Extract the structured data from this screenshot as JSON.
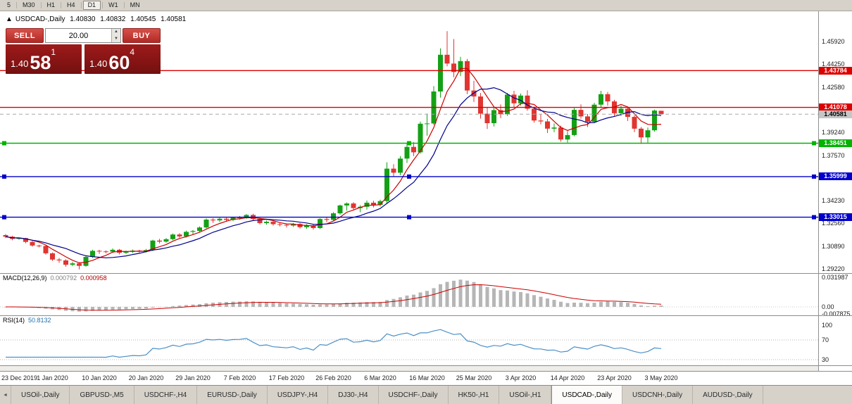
{
  "toolbar": {
    "timeframes": [
      "5",
      "M30",
      "H1",
      "H4",
      "D1",
      "W1",
      "MN"
    ],
    "active": "D1"
  },
  "chart_header": {
    "marker": "▲",
    "title": "USDCAD-,Daily",
    "o": "1.40830",
    "h": "1.40832",
    "l": "1.40545",
    "c": "1.40581"
  },
  "trade_panel": {
    "sell_label": "SELL",
    "buy_label": "BUY",
    "volume": "20.00",
    "up_arrow": "▲",
    "down_arrow": "▼",
    "bid": {
      "prefix": "1.40",
      "big": "58",
      "sup": "1"
    },
    "ask": {
      "prefix": "1.40",
      "big": "60",
      "sup": "4"
    }
  },
  "colors": {
    "bull": "#14a016",
    "bear": "#e03530",
    "ma_fast": "#cc0000",
    "ma_slow": "#00008b",
    "macd_hist": "#b6b6b6",
    "macd_signal": "#cc0000",
    "rsi_line": "#4a90c8",
    "level_red": "#dd0000",
    "level_green": "#00b400",
    "level_blue": "#0000cc",
    "tag_current_bg": "#c6c6c6",
    "tag_current_text": "#000000"
  },
  "price_axis": {
    "labels": [
      "1.45920",
      "1.44250",
      "1.42580",
      "1.40910",
      "1.39240",
      "1.37570",
      "1.35900",
      "1.34230",
      "1.32560",
      "1.30890",
      "1.29220"
    ]
  },
  "levels": [
    {
      "price": 1.43784,
      "label": "1.43784",
      "color": "red",
      "handles": false
    },
    {
      "price": 1.41078,
      "label": "1.41078",
      "color": "red",
      "handles": false
    },
    {
      "price": 1.38451,
      "label": "1.38451",
      "color": "green",
      "handles": true
    },
    {
      "price": 1.35999,
      "label": "1.35999",
      "color": "blue",
      "handles": true
    },
    {
      "price": 1.33015,
      "label": "1.33015",
      "color": "blue",
      "handles": true
    }
  ],
  "current_price": {
    "label": "1.40581",
    "price": 1.40581
  },
  "chart_data": {
    "type": "candlestick",
    "symbol": "USDCAD-",
    "timeframe": "Daily",
    "label_every": 7,
    "ma_fast_period": 5,
    "ma_slow_period": 10,
    "x_labels": [
      "23 Dec 2019",
      "1 Jan 2020",
      "10 Jan 2020",
      "20 Jan 2020",
      "29 Jan 2020",
      "7 Feb 2020",
      "17 Feb 2020",
      "26 Feb 2020",
      "6 Mar 2020",
      "16 Mar 2020",
      "25 Mar 2020",
      "3 Apr 2020",
      "14 Apr 2020",
      "23 Apr 2020",
      "3 May 2020"
    ],
    "candles": [
      [
        1.317,
        1.3178,
        1.3148,
        1.3158
      ],
      [
        1.3158,
        1.3165,
        1.3132,
        1.3142
      ],
      [
        1.3142,
        1.3152,
        1.3136,
        1.3148
      ],
      [
        1.3148,
        1.315,
        1.311,
        1.312
      ],
      [
        1.312,
        1.3128,
        1.3085,
        1.3093
      ],
      [
        1.3093,
        1.3099,
        1.308,
        1.309
      ],
      [
        1.309,
        1.3094,
        1.3026,
        1.3036
      ],
      [
        1.3036,
        1.3042,
        1.298,
        1.299
      ],
      [
        1.299,
        1.3002,
        1.2966,
        1.2984
      ],
      [
        1.2984,
        1.2992,
        1.2938,
        1.2952
      ],
      [
        1.2952,
        1.2972,
        1.2942,
        1.2962
      ],
      [
        1.2962,
        1.2968,
        1.2918,
        1.2944
      ],
      [
        1.2944,
        1.3016,
        1.2938,
        1.301
      ],
      [
        1.301,
        1.3062,
        1.3002,
        1.3054
      ],
      [
        1.3054,
        1.3062,
        1.3032,
        1.305
      ],
      [
        1.305,
        1.3058,
        1.3036,
        1.3048
      ],
      [
        1.3048,
        1.3072,
        1.304,
        1.3062
      ],
      [
        1.3062,
        1.3068,
        1.3028,
        1.304
      ],
      [
        1.304,
        1.3056,
        1.3032,
        1.3048
      ],
      [
        1.3048,
        1.3064,
        1.3038,
        1.3056
      ],
      [
        1.3056,
        1.3062,
        1.304,
        1.3052
      ],
      [
        1.3052,
        1.3068,
        1.3042,
        1.306
      ],
      [
        1.306,
        1.3136,
        1.3052,
        1.313
      ],
      [
        1.313,
        1.3142,
        1.311,
        1.3122
      ],
      [
        1.3122,
        1.3148,
        1.3114,
        1.314
      ],
      [
        1.314,
        1.3182,
        1.3132,
        1.3174
      ],
      [
        1.3174,
        1.3184,
        1.315,
        1.316
      ],
      [
        1.316,
        1.3202,
        1.3152,
        1.3194
      ],
      [
        1.3194,
        1.3208,
        1.3176,
        1.32
      ],
      [
        1.32,
        1.3234,
        1.319,
        1.3226
      ],
      [
        1.3226,
        1.3292,
        1.3218,
        1.3284
      ],
      [
        1.3284,
        1.3294,
        1.326,
        1.3278
      ],
      [
        1.3278,
        1.3298,
        1.3266,
        1.329
      ],
      [
        1.329,
        1.3298,
        1.3268,
        1.3282
      ],
      [
        1.3282,
        1.3304,
        1.3272,
        1.3298
      ],
      [
        1.3298,
        1.331,
        1.3284,
        1.33
      ],
      [
        1.33,
        1.3324,
        1.329,
        1.3318
      ],
      [
        1.3318,
        1.3326,
        1.3278,
        1.3288
      ],
      [
        1.3288,
        1.3296,
        1.3248,
        1.3258
      ],
      [
        1.3258,
        1.3276,
        1.3246,
        1.3268
      ],
      [
        1.3268,
        1.3274,
        1.324,
        1.325
      ],
      [
        1.325,
        1.326,
        1.3234,
        1.3245
      ],
      [
        1.3245,
        1.3254,
        1.3226,
        1.324
      ],
      [
        1.324,
        1.326,
        1.323,
        1.3252
      ],
      [
        1.3252,
        1.3258,
        1.3218,
        1.3228
      ],
      [
        1.3228,
        1.325,
        1.3216,
        1.3242
      ],
      [
        1.3242,
        1.3248,
        1.321,
        1.3222
      ],
      [
        1.3222,
        1.3294,
        1.3214,
        1.3288
      ],
      [
        1.3288,
        1.33,
        1.3264,
        1.3282
      ],
      [
        1.3282,
        1.3338,
        1.3274,
        1.333
      ],
      [
        1.333,
        1.3394,
        1.332,
        1.3388
      ],
      [
        1.3388,
        1.341,
        1.335,
        1.3402
      ],
      [
        1.3402,
        1.3412,
        1.3352,
        1.3368
      ],
      [
        1.3368,
        1.339,
        1.3338,
        1.3378
      ],
      [
        1.3378,
        1.3424,
        1.3358,
        1.3408
      ],
      [
        1.3408,
        1.3422,
        1.3374,
        1.3392
      ],
      [
        1.3392,
        1.343,
        1.338,
        1.342
      ],
      [
        1.342,
        1.3705,
        1.3402,
        1.3658
      ],
      [
        1.3658,
        1.369,
        1.36,
        1.3628
      ],
      [
        1.3628,
        1.375,
        1.361,
        1.3732
      ],
      [
        1.3732,
        1.385,
        1.37,
        1.3818
      ],
      [
        1.3818,
        1.3854,
        1.375,
        1.3778
      ],
      [
        1.3778,
        1.4004,
        1.3768,
        1.3988
      ],
      [
        1.3988,
        1.4062,
        1.39,
        1.399
      ],
      [
        1.399,
        1.4264,
        1.398,
        1.4225
      ],
      [
        1.4225,
        1.4542,
        1.418,
        1.4495
      ],
      [
        1.4495,
        1.4668,
        1.441,
        1.443
      ],
      [
        1.443,
        1.461,
        1.433,
        1.4368
      ],
      [
        1.4368,
        1.448,
        1.4338,
        1.4448
      ],
      [
        1.4448,
        1.4464,
        1.4206,
        1.4232
      ],
      [
        1.4232,
        1.4304,
        1.4148,
        1.4188
      ],
      [
        1.4188,
        1.4214,
        1.4026,
        1.4062
      ],
      [
        1.4062,
        1.411,
        1.395,
        1.3992
      ],
      [
        1.3992,
        1.4104,
        1.3968,
        1.4088
      ],
      [
        1.4088,
        1.413,
        1.403,
        1.4058
      ],
      [
        1.4058,
        1.4214,
        1.4046,
        1.4202
      ],
      [
        1.4202,
        1.423,
        1.4106,
        1.4138
      ],
      [
        1.4138,
        1.421,
        1.412,
        1.4195
      ],
      [
        1.4195,
        1.4234,
        1.4084,
        1.4098
      ],
      [
        1.4098,
        1.4114,
        1.3996,
        1.4012
      ],
      [
        1.4012,
        1.406,
        1.3984,
        1.4005
      ],
      [
        1.4005,
        1.4024,
        1.392,
        1.3952
      ],
      [
        1.3952,
        1.399,
        1.3926,
        1.396
      ],
      [
        1.396,
        1.3974,
        1.3856,
        1.3872
      ],
      [
        1.3872,
        1.3934,
        1.385,
        1.3905
      ],
      [
        1.3905,
        1.4104,
        1.3896,
        1.409
      ],
      [
        1.409,
        1.413,
        1.4026,
        1.4042
      ],
      [
        1.4042,
        1.406,
        1.3964,
        1.4002
      ],
      [
        1.4002,
        1.4142,
        1.3994,
        1.4128
      ],
      [
        1.4128,
        1.423,
        1.4106,
        1.4205
      ],
      [
        1.4205,
        1.4222,
        1.412,
        1.4152
      ],
      [
        1.4152,
        1.4164,
        1.404,
        1.4065
      ],
      [
        1.4065,
        1.412,
        1.4046,
        1.4098
      ],
      [
        1.4098,
        1.411,
        1.4008,
        1.4038
      ],
      [
        1.4038,
        1.405,
        1.3926,
        1.3952
      ],
      [
        1.3952,
        1.3964,
        1.384,
        1.3888
      ],
      [
        1.3888,
        1.396,
        1.3848,
        1.394
      ],
      [
        1.394,
        1.4092,
        1.393,
        1.4085
      ],
      [
        1.4083,
        1.40832,
        1.40545,
        1.40581
      ]
    ]
  },
  "macd_panel": {
    "label": "MACD(12,26,9)",
    "value1": "0.000792",
    "value2": "0.000958",
    "axis_labels": [
      "0.031987",
      "0.00",
      "-0.007875"
    ],
    "fast": 12,
    "slow": 26,
    "signal": 9
  },
  "rsi_panel": {
    "label": "RSI(14)",
    "value": "50.8132",
    "period": 14,
    "axis_labels": [
      "100",
      "70",
      "30"
    ]
  },
  "bottom_tabs": {
    "scroll_left": "◄",
    "tabs": [
      {
        "label": "USOil-,Daily",
        "active": false
      },
      {
        "label": "GBPUSD-,M5",
        "active": false
      },
      {
        "label": "USDCHF-,H4",
        "active": false
      },
      {
        "label": "EURUSD-,Daily",
        "active": false
      },
      {
        "label": "USDJPY-,H4",
        "active": false
      },
      {
        "label": "DJ30-,H4",
        "active": false
      },
      {
        "label": "USDCHF-,Daily",
        "active": false
      },
      {
        "label": "HK50-,H1",
        "active": false
      },
      {
        "label": "USOil-,H1",
        "active": false
      },
      {
        "label": "USDCAD-,Daily",
        "active": true
      },
      {
        "label": "USDCNH-,Daily",
        "active": false
      },
      {
        "label": "AUDUSD-,Daily",
        "active": false
      }
    ]
  }
}
